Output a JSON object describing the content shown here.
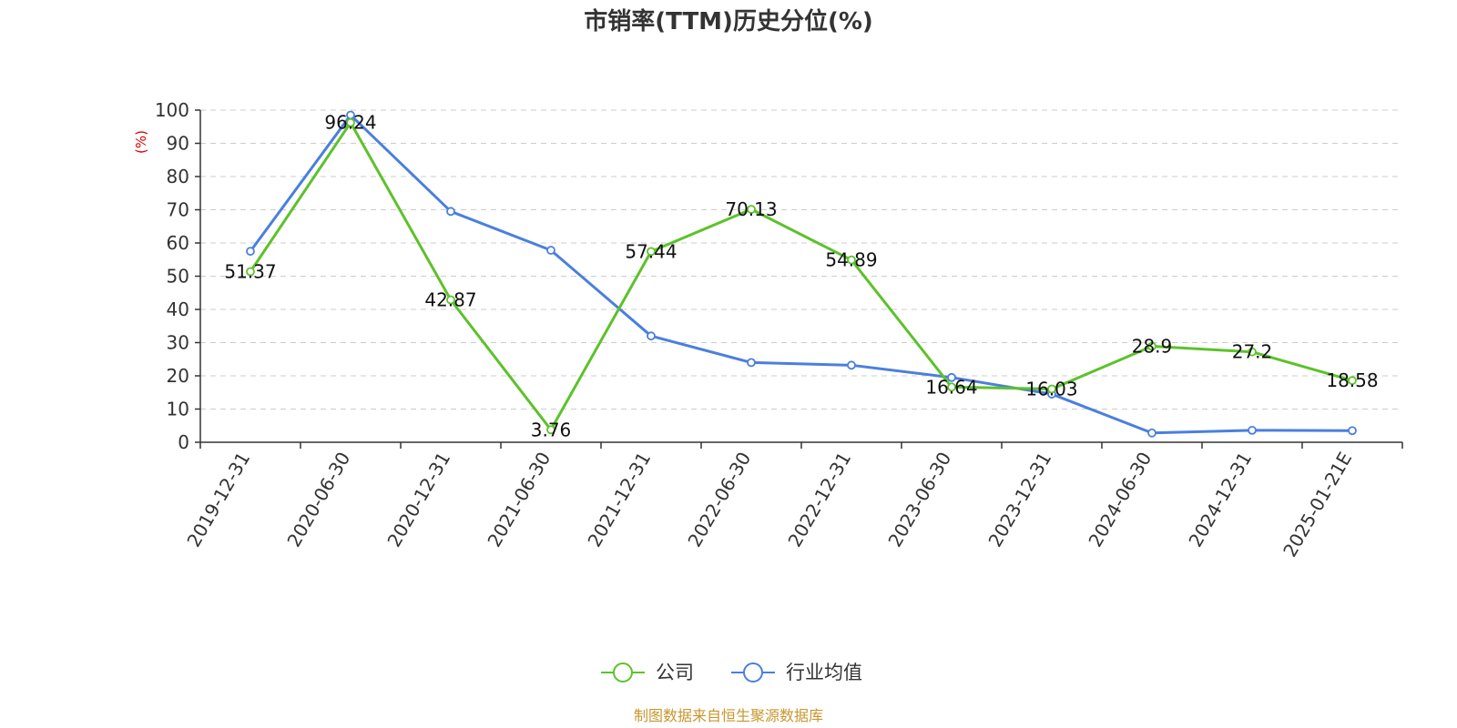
{
  "chart_data": {
    "type": "line",
    "title": "市销率(TTM)历史分位(%)",
    "ylabel": "(%)",
    "xlabel": "",
    "ylim": [
      0,
      100
    ],
    "yticks": [
      0,
      10,
      20,
      30,
      40,
      50,
      60,
      70,
      80,
      90,
      100
    ],
    "grid": true,
    "legend_position": "bottom-center",
    "categories": [
      "2019-12-31",
      "2020-06-30",
      "2020-12-31",
      "2021-06-30",
      "2021-12-31",
      "2022-06-30",
      "2022-12-31",
      "2023-06-30",
      "2023-12-31",
      "2024-06-30",
      "2024-12-31",
      "2025-01-21E"
    ],
    "series": [
      {
        "name": "公司",
        "color": "#5cc22a",
        "values": [
          51.37,
          96.24,
          42.87,
          3.76,
          57.44,
          70.13,
          54.89,
          16.64,
          16.03,
          28.9,
          27.2,
          18.58
        ],
        "data_labels": [
          "51.37",
          "96.24",
          "42.87",
          "3.76",
          "57.44",
          "70.13",
          "54.89",
          "16.64",
          "16.03",
          "28.9",
          "27.2",
          "18.58"
        ]
      },
      {
        "name": "行业均值",
        "color": "#4a7fde",
        "values": [
          57.5,
          98.5,
          69.5,
          57.8,
          32.0,
          24.0,
          23.2,
          19.5,
          14.5,
          2.8,
          3.6,
          3.5
        ]
      }
    ],
    "source": "制图数据来自恒生聚源数据库"
  }
}
